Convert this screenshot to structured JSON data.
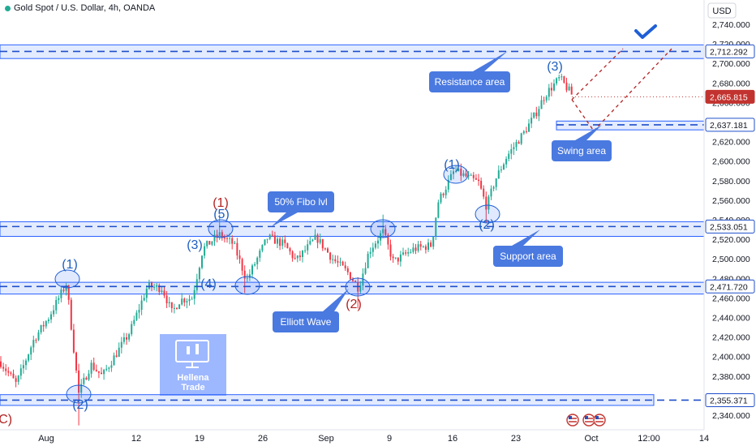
{
  "chart_data": {
    "type": "candlestick",
    "title": "Gold Spot / U.S. Dollar, 4h, OANDA",
    "currency": "USD",
    "ylim": [
      2335,
      2755
    ],
    "y_ticks": [
      2340,
      2360,
      2380,
      2400,
      2420,
      2440,
      2460,
      2480,
      2500,
      2520,
      2540,
      2560,
      2580,
      2600,
      2620,
      2640,
      2660,
      2680,
      2700,
      2720,
      2740
    ],
    "x_ticks": [
      "Aug",
      "12",
      "19",
      "26",
      "Sep",
      "9",
      "16",
      "23",
      "Oct",
      "12:00",
      "14"
    ],
    "price_tags": [
      {
        "label": "2,712.292",
        "value": 2712.292,
        "style": "outline"
      },
      {
        "label": "2,665.815",
        "value": 2665.815,
        "style": "current"
      },
      {
        "label": "2,637.181",
        "value": 2637.181,
        "style": "outline"
      },
      {
        "label": "2,533.051",
        "value": 2533.051,
        "style": "outline"
      },
      {
        "label": "2,471.720",
        "value": 2471.72,
        "style": "outline"
      },
      {
        "label": "2,355.371",
        "value": 2355.371,
        "style": "outline"
      }
    ],
    "zones": [
      {
        "name": "resistance",
        "low": 2705,
        "high": 2719
      },
      {
        "name": "swing",
        "low": 2632,
        "high": 2641
      },
      {
        "name": "support",
        "low": 2523,
        "high": 2538
      },
      {
        "name": "lower-support",
        "low": 2464,
        "high": 2476
      },
      {
        "name": "bottom-support",
        "low": 2350,
        "high": 2361
      }
    ],
    "annotations": [
      {
        "text": "Resistance area"
      },
      {
        "text": "Swing area"
      },
      {
        "text": "50% Fibo lvl"
      },
      {
        "text": "Support area"
      },
      {
        "text": "Elliott Wave"
      }
    ],
    "wave_labels": [
      {
        "text": "(1)",
        "color": "#1e5fbf"
      },
      {
        "text": "(2)",
        "color": "#1e5fbf"
      },
      {
        "text": "(3)",
        "color": "#1e5fbf"
      },
      {
        "text": "(4)",
        "color": "#1e5fbf"
      },
      {
        "text": "(5)",
        "color": "#1e5fbf"
      },
      {
        "text": "(1)",
        "color": "#b22222"
      },
      {
        "text": "(2)",
        "color": "#b22222"
      },
      {
        "text": "(1)",
        "color": "#1e5fbf"
      },
      {
        "text": "(2)",
        "color": "#1e5fbf"
      },
      {
        "text": "(3)",
        "color": "#1e5fbf"
      },
      {
        "text": "(C)",
        "color": "#b22222"
      }
    ],
    "watermark": [
      "Hellena",
      "Trade"
    ],
    "colors": {
      "up": "#22ab94",
      "down": "#f23645",
      "zone": "#2962ff",
      "label_bg": "#4a79e0",
      "current_price": "#c2332f",
      "projection": "#b22222"
    }
  }
}
